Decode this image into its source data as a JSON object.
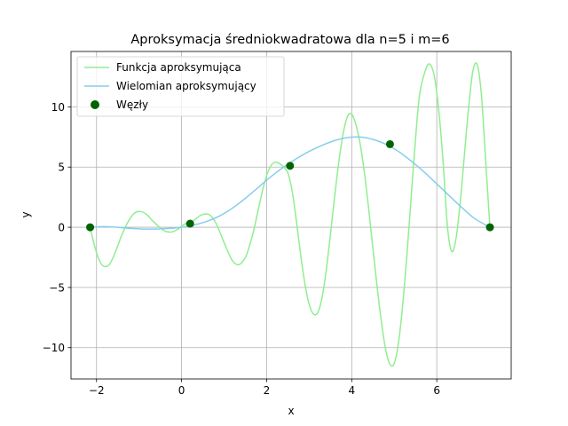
{
  "chart_data": {
    "type": "line",
    "title": "Aproksymacja średniokwadratowa dla n=5 i m=6",
    "xlabel": "x",
    "ylabel": "y",
    "xlim": [
      -2.6,
      7.75
    ],
    "ylim": [
      -12.6,
      14.6
    ],
    "xticks": [
      -2,
      0,
      2,
      4,
      6
    ],
    "xtick_labels": [
      "−2",
      "0",
      "2",
      "4",
      "6"
    ],
    "yticks": [
      -10,
      -5,
      0,
      5,
      10
    ],
    "ytick_labels": [
      "−10",
      "−5",
      "0",
      "5",
      "10"
    ],
    "grid": true,
    "legend_position": "upper left",
    "series": [
      {
        "name": "Funkcja aproksymująca",
        "kind": "line",
        "color": "#90ee90",
        "x": [
          -2.15,
          -2.05,
          -1.95,
          -1.85,
          -1.7,
          -1.55,
          -1.4,
          -1.25,
          -1.1,
          -0.95,
          -0.8,
          -0.7,
          -0.55,
          -0.4,
          -0.25,
          -0.1,
          0.0,
          0.1,
          0.2,
          0.3,
          0.45,
          0.6,
          0.7,
          0.8,
          0.9,
          1.05,
          1.2,
          1.35,
          1.5,
          1.6,
          1.7,
          1.8,
          1.9,
          2.0,
          2.1,
          2.2,
          2.3,
          2.4,
          2.5,
          2.6,
          2.7,
          2.8,
          2.9,
          3.0,
          3.1,
          3.2,
          3.3,
          3.4,
          3.5,
          3.6,
          3.7,
          3.8,
          3.9,
          4.0,
          4.1,
          4.2,
          4.3,
          4.4,
          4.5,
          4.6,
          4.7,
          4.8,
          4.9,
          5.0,
          5.1,
          5.2,
          5.3,
          5.4,
          5.5,
          5.6,
          5.75,
          5.85,
          5.95,
          6.05,
          6.15,
          6.25,
          6.35,
          6.45,
          6.55,
          6.65,
          6.75,
          6.85,
          6.95,
          7.05,
          7.15,
          7.25
        ],
        "y": [
          0.0,
          -1.5,
          -2.6,
          -3.2,
          -3.1,
          -2.0,
          -0.6,
          0.5,
          1.2,
          1.3,
          1.0,
          0.6,
          0.1,
          -0.3,
          -0.4,
          -0.2,
          0.1,
          0.3,
          0.35,
          0.6,
          1.0,
          1.1,
          0.9,
          0.4,
          -0.4,
          -1.7,
          -2.8,
          -3.1,
          -2.5,
          -1.5,
          -0.2,
          1.4,
          3.0,
          4.3,
          5.1,
          5.4,
          5.3,
          5.0,
          4.5,
          3.0,
          0.5,
          -2.3,
          -4.7,
          -6.4,
          -7.2,
          -7.1,
          -5.9,
          -3.6,
          -0.6,
          2.6,
          5.5,
          7.8,
          9.2,
          9.4,
          8.5,
          6.9,
          4.5,
          1.5,
          -1.8,
          -5.0,
          -7.9,
          -10.2,
          -11.4,
          -11.3,
          -9.6,
          -6.4,
          -2.2,
          2.6,
          7.3,
          11.1,
          13.2,
          13.5,
          12.4,
          9.6,
          5.4,
          0.1,
          -2.0,
          -1.0,
          2.0,
          6.0,
          10.0,
          13.0,
          13.5,
          11.0,
          5.5,
          0.0
        ]
      },
      {
        "name": "Wielomian aproksymujący",
        "kind": "line",
        "color": "#87ceeb",
        "x": [
          -2.15,
          -1.8,
          -1.5,
          -1.2,
          -0.9,
          -0.6,
          -0.3,
          0.0,
          0.3,
          0.6,
          0.9,
          1.2,
          1.5,
          1.8,
          2.1,
          2.4,
          2.7,
          3.0,
          3.3,
          3.6,
          3.9,
          4.2,
          4.5,
          4.8,
          5.1,
          5.4,
          5.7,
          6.0,
          6.3,
          6.6,
          6.9,
          7.25
        ],
        "y": [
          0.0,
          0.05,
          0.0,
          -0.1,
          -0.15,
          -0.15,
          -0.1,
          0.0,
          0.2,
          0.5,
          0.95,
          1.6,
          2.4,
          3.3,
          4.2,
          5.0,
          5.7,
          6.3,
          6.8,
          7.2,
          7.45,
          7.5,
          7.3,
          6.9,
          6.3,
          5.5,
          4.6,
          3.6,
          2.6,
          1.6,
          0.7,
          0.0
        ]
      },
      {
        "name": "Węzły",
        "kind": "scatter",
        "color": "#006400",
        "x": [
          -2.15,
          0.2,
          2.55,
          4.9,
          7.25
        ],
        "y": [
          0.0,
          0.3,
          5.1,
          6.9,
          0.0
        ]
      }
    ]
  }
}
